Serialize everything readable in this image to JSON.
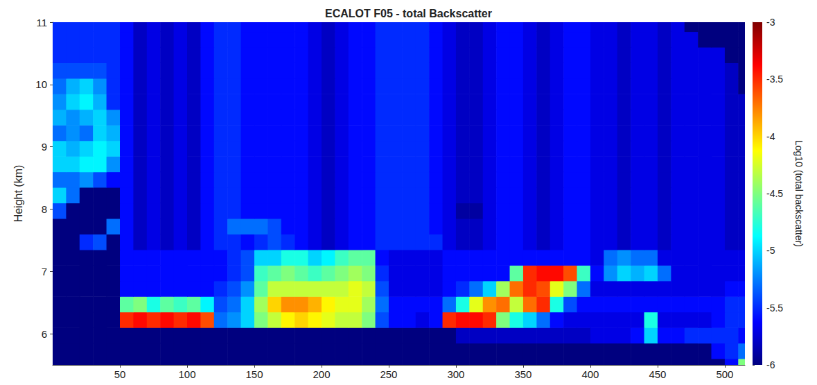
{
  "chart_data": {
    "type": "heatmap",
    "title": "ECALOT F05 - total Backscatter",
    "y_label": "Height (km)",
    "xlim": [
      0,
      515
    ],
    "xticks": [
      50,
      100,
      150,
      200,
      250,
      300,
      350,
      400,
      450,
      500
    ],
    "ylim": [
      5.5,
      11
    ],
    "yticks": [
      6,
      7,
      8,
      9,
      10,
      11
    ],
    "colorbar": {
      "label": "Log10 (total backscatter)",
      "range": [
        -6,
        -3
      ],
      "ticks": [
        -6,
        -5.5,
        -5,
        -4.5,
        -4,
        -3.5,
        -3
      ]
    },
    "x": [
      5,
      15,
      25,
      35,
      45,
      55,
      65,
      75,
      85,
      95,
      105,
      115,
      125,
      135,
      145,
      155,
      165,
      175,
      185,
      195,
      205,
      215,
      225,
      235,
      245,
      255,
      265,
      275,
      285,
      295,
      305,
      315,
      325,
      335,
      345,
      355,
      365,
      375,
      385,
      395,
      405,
      415,
      425,
      435,
      445,
      455,
      465,
      475,
      485,
      495,
      505,
      515
    ],
    "y": [
      5.475,
      5.725,
      5.975,
      6.225,
      6.475,
      6.725,
      6.975,
      7.225,
      7.475,
      7.725,
      7.975,
      8.225,
      8.475,
      8.725,
      8.975,
      9.225,
      9.475,
      9.725,
      9.975,
      10.225,
      10.475,
      10.725,
      10.975
    ],
    "values": [
      [
        -6,
        -6,
        -6,
        -6,
        -6,
        -6,
        -6,
        -6,
        -6,
        -6,
        -6,
        -6,
        -6,
        -6,
        -6,
        -6,
        -6,
        -6,
        -6,
        -6,
        -6,
        -6,
        -6,
        -6,
        -6,
        -6,
        -6,
        -6,
        -6,
        -6,
        -6,
        -6,
        -6,
        -6,
        -6,
        -6,
        -6,
        -6,
        -6,
        -6,
        -6,
        -6,
        -6,
        -6,
        -6,
        -6,
        -6,
        -6,
        -6,
        -6,
        -5.6,
        -4.5
      ],
      [
        -6,
        -6,
        -6,
        -6,
        -6,
        -6,
        -6,
        -6,
        -6,
        -6,
        -6,
        -6,
        -6,
        -6,
        -6,
        -6,
        -6,
        -6,
        -6,
        -6,
        -6,
        -6,
        -6,
        -6,
        -6,
        -6,
        -6,
        -6,
        -6,
        -6,
        -6,
        -6,
        -6,
        -6,
        -6,
        -6,
        -6,
        -6,
        -6,
        -6,
        -6,
        -6,
        -6,
        -6,
        -6,
        -6,
        -6,
        -6,
        -6,
        -5.6,
        -5.5,
        -5.3
      ],
      [
        -6,
        -6,
        -6,
        -6,
        -6,
        -6,
        -6,
        -6,
        -6,
        -6,
        -6,
        -6,
        -6,
        -6,
        -6,
        -6,
        -6,
        -6,
        -6,
        -6,
        -6,
        -6,
        -6,
        -6,
        -6,
        -6,
        -6,
        -6,
        -6,
        -6,
        -5.8,
        -5.8,
        -5.8,
        -5.8,
        -5.8,
        -5.8,
        -5.8,
        -5.8,
        -5.8,
        -5.8,
        -5.7,
        -5.7,
        -5.7,
        -5.6,
        -5.0,
        -5.6,
        -5.6,
        -5.5,
        -5.5,
        -5.5,
        -5.5,
        -5.6
      ],
      [
        -6,
        -6,
        -6,
        -6,
        -6,
        -3.5,
        -3.4,
        -3.5,
        -3.4,
        -3.5,
        -3.4,
        -3.6,
        -5.3,
        -5.2,
        -5.0,
        -4.5,
        -4.3,
        -4.1,
        -4.0,
        -4.1,
        -4.2,
        -4.3,
        -4.3,
        -4.5,
        -5.4,
        -5.6,
        -5.6,
        -5.7,
        -5.6,
        -3.5,
        -3.4,
        -3.4,
        -3.5,
        -4.5,
        -4.8,
        -5.0,
        -5.3,
        -5.6,
        -5.7,
        -5.7,
        -5.7,
        -5.7,
        -5.7,
        -5.7,
        -4.8,
        -5.7,
        -5.7,
        -5.7,
        -5.7,
        -5.6,
        -5.5,
        -5.5
      ],
      [
        -6,
        -6,
        -6,
        -6,
        -6,
        -4.6,
        -4.5,
        -4.8,
        -4.6,
        -4.7,
        -4.6,
        -4.9,
        -5.4,
        -5.3,
        -5.0,
        -4.4,
        -4.0,
        -3.8,
        -3.8,
        -3.9,
        -4.1,
        -4.2,
        -4.2,
        -4.4,
        -5.3,
        -5.6,
        -5.6,
        -5.6,
        -5.6,
        -5.3,
        -4.8,
        -4.2,
        -3.8,
        -3.7,
        -4.3,
        -3.7,
        -3.5,
        -4.8,
        -5.4,
        -5.6,
        -5.6,
        -5.6,
        -5.6,
        -5.6,
        -5.6,
        -5.6,
        -5.6,
        -5.6,
        -5.6,
        -5.6,
        -5.5,
        -5.5
      ],
      [
        -6,
        -6,
        -6,
        -6,
        -6,
        -5.6,
        -5.6,
        -5.6,
        -5.6,
        -5.6,
        -5.6,
        -5.6,
        -5.5,
        -5.4,
        -5.2,
        -4.6,
        -4.3,
        -4.3,
        -4.3,
        -4.3,
        -4.3,
        -4.3,
        -4.2,
        -4.3,
        -5.4,
        -5.7,
        -5.7,
        -5.7,
        -5.7,
        -5.6,
        -5.5,
        -5.3,
        -5.0,
        -4.4,
        -3.7,
        -3.5,
        -3.6,
        -4.2,
        -4.5,
        -5.3,
        -5.7,
        -5.7,
        -5.7,
        -5.7,
        -5.7,
        -5.7,
        -5.7,
        -5.7,
        -5.7,
        -5.7,
        -5.6,
        -5.6
      ],
      [
        -6,
        -6,
        -6,
        -6,
        -6,
        -5.6,
        -5.6,
        -5.6,
        -5.6,
        -5.6,
        -5.6,
        -5.6,
        -5.6,
        -5.5,
        -5.4,
        -4.7,
        -4.6,
        -4.5,
        -4.6,
        -4.7,
        -4.6,
        -4.5,
        -4.4,
        -4.5,
        -5.5,
        -5.7,
        -5.7,
        -5.7,
        -5.7,
        -5.6,
        -5.6,
        -5.6,
        -5.6,
        -5.6,
        -4.6,
        -3.5,
        -3.4,
        -3.4,
        -3.6,
        -4.7,
        -5.6,
        -5.2,
        -5.0,
        -5.1,
        -5.0,
        -5.3,
        -5.7,
        -5.7,
        -5.7,
        -5.7,
        -5.7,
        -5.7
      ],
      [
        -6,
        -6,
        -6,
        -6,
        -6,
        -5.6,
        -5.6,
        -5.6,
        -5.6,
        -5.6,
        -5.6,
        -5.6,
        -5.6,
        -5.5,
        -5.4,
        -5.0,
        -5.0,
        -4.8,
        -4.8,
        -5.0,
        -4.9,
        -4.7,
        -4.6,
        -4.6,
        -5.6,
        -5.7,
        -5.7,
        -5.7,
        -5.7,
        -5.6,
        -5.6,
        -5.6,
        -5.6,
        -5.6,
        -5.6,
        -5.6,
        -5.6,
        -5.6,
        -5.6,
        -5.6,
        -5.7,
        -5.3,
        -5.2,
        -5.3,
        -5.3,
        -5.7,
        -5.7,
        -5.7,
        -5.7,
        -5.7,
        -5.7,
        -5.7
      ],
      [
        -6,
        -6,
        -5.5,
        -5.4,
        -6,
        -5.6,
        -5.8,
        -5.7,
        -5.8,
        -5.7,
        -5.8,
        -5.6,
        -5.5,
        -5.5,
        -5.6,
        -5.5,
        -5.4,
        -5.5,
        -5.6,
        -5.7,
        -5.8,
        -5.7,
        -5.6,
        -5.6,
        -5.5,
        -5.5,
        -5.5,
        -5.5,
        -5.5,
        -5.7,
        -5.8,
        -5.8,
        -5.7,
        -5.6,
        -5.6,
        -5.7,
        -5.8,
        -5.7,
        -5.6,
        -5.6,
        -5.7,
        -5.7,
        -5.8,
        -5.7,
        -5.7,
        -5.8,
        -5.7,
        -5.7,
        -5.7,
        -5.7,
        -5.8,
        -5.8
      ],
      [
        -6,
        -6,
        -6,
        -6,
        -5.3,
        -5.6,
        -5.8,
        -5.7,
        -5.8,
        -5.7,
        -5.8,
        -5.6,
        -5.5,
        -5.3,
        -5.3,
        -5.3,
        -5.4,
        -5.6,
        -5.6,
        -5.7,
        -5.8,
        -5.7,
        -5.6,
        -5.6,
        -5.5,
        -5.5,
        -5.5,
        -5.5,
        -5.6,
        -5.7,
        -5.8,
        -5.8,
        -5.7,
        -5.6,
        -5.6,
        -5.7,
        -5.8,
        -5.7,
        -5.6,
        -5.6,
        -5.7,
        -5.7,
        -5.8,
        -5.7,
        -5.7,
        -5.8,
        -5.7,
        -5.7,
        -5.7,
        -5.7,
        -5.8,
        -5.8
      ],
      [
        -5.4,
        -6,
        -6,
        -6,
        -6,
        -5.6,
        -5.8,
        -5.7,
        -5.8,
        -5.7,
        -5.8,
        -5.6,
        -5.5,
        -5.5,
        -5.6,
        -5.6,
        -5.6,
        -5.6,
        -5.6,
        -5.7,
        -5.8,
        -5.7,
        -5.6,
        -5.6,
        -5.5,
        -5.5,
        -5.5,
        -5.5,
        -5.6,
        -5.7,
        -5.9,
        -5.9,
        -5.7,
        -5.6,
        -5.6,
        -5.7,
        -5.8,
        -5.7,
        -5.6,
        -5.6,
        -5.7,
        -5.7,
        -5.8,
        -5.7,
        -5.7,
        -5.8,
        -5.7,
        -5.7,
        -5.7,
        -5.7,
        -5.8,
        -5.8
      ],
      [
        -5.0,
        -5.3,
        -6,
        -6,
        -6,
        -5.6,
        -5.8,
        -5.7,
        -5.8,
        -5.7,
        -5.8,
        -5.6,
        -5.5,
        -5.5,
        -5.6,
        -5.6,
        -5.6,
        -5.6,
        -5.6,
        -5.7,
        -5.8,
        -5.7,
        -5.6,
        -5.6,
        -5.5,
        -5.5,
        -5.5,
        -5.5,
        -5.6,
        -5.7,
        -5.8,
        -5.8,
        -5.7,
        -5.6,
        -5.6,
        -5.7,
        -5.8,
        -5.7,
        -5.6,
        -5.6,
        -5.7,
        -5.7,
        -5.8,
        -5.7,
        -5.7,
        -5.8,
        -5.7,
        -5.7,
        -5.7,
        -5.7,
        -5.8,
        -5.8
      ],
      [
        -5.3,
        -5.3,
        -5.2,
        -5.4,
        -5.6,
        -5.6,
        -5.8,
        -5.7,
        -5.8,
        -5.7,
        -5.8,
        -5.6,
        -5.5,
        -5.5,
        -5.6,
        -5.6,
        -5.6,
        -5.6,
        -5.6,
        -5.7,
        -5.8,
        -5.7,
        -5.6,
        -5.6,
        -5.5,
        -5.5,
        -5.5,
        -5.5,
        -5.6,
        -5.7,
        -5.8,
        -5.8,
        -5.7,
        -5.6,
        -5.6,
        -5.7,
        -5.8,
        -5.7,
        -5.6,
        -5.6,
        -5.7,
        -5.7,
        -5.8,
        -5.7,
        -5.7,
        -5.8,
        -5.7,
        -5.7,
        -5.7,
        -5.7,
        -5.8,
        -5.8
      ],
      [
        -5.0,
        -5.0,
        -4.9,
        -4.9,
        -5.2,
        -5.6,
        -5.8,
        -5.7,
        -5.8,
        -5.7,
        -5.8,
        -5.6,
        -5.5,
        -5.5,
        -5.6,
        -5.6,
        -5.6,
        -5.6,
        -5.6,
        -5.7,
        -5.8,
        -5.7,
        -5.6,
        -5.6,
        -5.5,
        -5.5,
        -5.5,
        -5.5,
        -5.6,
        -5.7,
        -5.8,
        -5.8,
        -5.7,
        -5.6,
        -5.6,
        -5.7,
        -5.8,
        -5.7,
        -5.6,
        -5.6,
        -5.7,
        -5.7,
        -5.8,
        -5.7,
        -5.7,
        -5.8,
        -5.7,
        -5.7,
        -5.7,
        -5.7,
        -5.8,
        -5.8
      ],
      [
        -5.0,
        -5.1,
        -5.0,
        -4.9,
        -5.0,
        -5.6,
        -5.8,
        -5.7,
        -5.8,
        -5.7,
        -5.8,
        -5.6,
        -5.5,
        -5.5,
        -5.6,
        -5.6,
        -5.6,
        -5.6,
        -5.6,
        -5.7,
        -5.8,
        -5.7,
        -5.6,
        -5.6,
        -5.5,
        -5.5,
        -5.5,
        -5.5,
        -5.6,
        -5.7,
        -5.8,
        -5.8,
        -5.7,
        -5.6,
        -5.6,
        -5.7,
        -5.8,
        -5.7,
        -5.6,
        -5.6,
        -5.7,
        -5.7,
        -5.8,
        -5.7,
        -5.7,
        -5.8,
        -5.7,
        -5.7,
        -5.7,
        -5.7,
        -5.8,
        -5.8
      ],
      [
        -5.3,
        -5.2,
        -5.3,
        -5.0,
        -5.1,
        -5.6,
        -5.8,
        -5.7,
        -5.8,
        -5.7,
        -5.8,
        -5.6,
        -5.5,
        -5.5,
        -5.6,
        -5.6,
        -5.6,
        -5.6,
        -5.6,
        -5.7,
        -5.8,
        -5.7,
        -5.6,
        -5.6,
        -5.5,
        -5.5,
        -5.5,
        -5.5,
        -5.6,
        -5.7,
        -5.8,
        -5.8,
        -5.7,
        -5.6,
        -5.6,
        -5.7,
        -5.8,
        -5.7,
        -5.6,
        -5.6,
        -5.7,
        -5.7,
        -5.8,
        -5.7,
        -5.7,
        -5.8,
        -5.7,
        -5.7,
        -5.7,
        -5.7,
        -5.8,
        -5.8
      ],
      [
        -5.1,
        -5.2,
        -5.1,
        -5.0,
        -5.2,
        -5.6,
        -5.8,
        -5.7,
        -5.8,
        -5.7,
        -5.8,
        -5.6,
        -5.5,
        -5.5,
        -5.6,
        -5.6,
        -5.6,
        -5.6,
        -5.6,
        -5.7,
        -5.8,
        -5.7,
        -5.6,
        -5.6,
        -5.5,
        -5.5,
        -5.5,
        -5.5,
        -5.6,
        -5.7,
        -5.8,
        -5.8,
        -5.7,
        -5.6,
        -5.6,
        -5.7,
        -5.8,
        -5.7,
        -5.6,
        -5.6,
        -5.7,
        -5.7,
        -5.8,
        -5.7,
        -5.7,
        -5.8,
        -5.7,
        -5.7,
        -5.7,
        -5.7,
        -5.8,
        -5.8
      ],
      [
        -5.2,
        -5.0,
        -4.9,
        -5.1,
        -5.5,
        -5.6,
        -5.8,
        -5.7,
        -5.8,
        -5.7,
        -5.8,
        -5.6,
        -5.5,
        -5.5,
        -5.6,
        -5.6,
        -5.6,
        -5.6,
        -5.6,
        -5.7,
        -5.8,
        -5.7,
        -5.6,
        -5.6,
        -5.5,
        -5.5,
        -5.5,
        -5.5,
        -5.6,
        -5.7,
        -5.8,
        -5.8,
        -5.7,
        -5.6,
        -5.6,
        -5.7,
        -5.8,
        -5.7,
        -5.6,
        -5.6,
        -5.7,
        -5.7,
        -5.8,
        -5.7,
        -5.7,
        -5.8,
        -5.7,
        -5.7,
        -5.7,
        -5.7,
        -5.8,
        -5.8
      ],
      [
        -5.3,
        -5.1,
        -5.0,
        -5.2,
        -5.5,
        -5.6,
        -5.8,
        -5.7,
        -5.8,
        -5.7,
        -5.8,
        -5.6,
        -5.5,
        -5.5,
        -5.6,
        -5.6,
        -5.6,
        -5.6,
        -5.6,
        -5.7,
        -5.8,
        -5.7,
        -5.6,
        -5.6,
        -5.5,
        -5.5,
        -5.5,
        -5.5,
        -5.6,
        -5.7,
        -5.8,
        -5.8,
        -5.7,
        -5.6,
        -5.6,
        -5.7,
        -5.8,
        -5.7,
        -5.6,
        -5.6,
        -5.7,
        -5.7,
        -5.8,
        -5.7,
        -5.7,
        -5.8,
        -5.7,
        -5.7,
        -5.7,
        -5.7,
        -5.8,
        -6
      ],
      [
        -5.4,
        -5.4,
        -5.4,
        -5.4,
        -5.5,
        -5.6,
        -5.8,
        -5.7,
        -5.8,
        -5.7,
        -5.8,
        -5.6,
        -5.5,
        -5.5,
        -5.6,
        -5.6,
        -5.6,
        -5.6,
        -5.6,
        -5.7,
        -5.8,
        -5.7,
        -5.6,
        -5.6,
        -5.5,
        -5.5,
        -5.5,
        -5.5,
        -5.6,
        -5.7,
        -5.8,
        -5.8,
        -5.7,
        -5.6,
        -5.6,
        -5.7,
        -5.8,
        -5.7,
        -5.6,
        -5.6,
        -5.7,
        -5.7,
        -5.8,
        -5.7,
        -5.7,
        -5.8,
        -5.7,
        -5.7,
        -5.7,
        -5.7,
        -5.8,
        -6
      ],
      [
        -5.5,
        -5.5,
        -5.5,
        -5.5,
        -5.5,
        -5.6,
        -5.8,
        -5.7,
        -5.8,
        -5.7,
        -5.8,
        -5.6,
        -5.5,
        -5.5,
        -5.6,
        -5.6,
        -5.6,
        -5.6,
        -5.6,
        -5.7,
        -5.8,
        -5.7,
        -5.6,
        -5.6,
        -5.5,
        -5.5,
        -5.5,
        -5.5,
        -5.6,
        -5.7,
        -5.8,
        -5.8,
        -5.7,
        -5.6,
        -5.6,
        -5.7,
        -5.8,
        -5.7,
        -5.6,
        -5.6,
        -5.7,
        -5.7,
        -5.8,
        -5.7,
        -5.7,
        -5.8,
        -5.7,
        -5.7,
        -5.7,
        -5.7,
        -6,
        -6
      ],
      [
        -5.5,
        -5.5,
        -5.5,
        -5.5,
        -5.5,
        -5.6,
        -5.8,
        -5.7,
        -5.8,
        -5.7,
        -5.8,
        -5.6,
        -5.5,
        -5.5,
        -5.6,
        -5.6,
        -5.6,
        -5.6,
        -5.6,
        -5.7,
        -5.8,
        -5.7,
        -5.6,
        -5.6,
        -5.5,
        -5.5,
        -5.5,
        -5.5,
        -5.6,
        -5.7,
        -5.8,
        -5.8,
        -5.7,
        -5.6,
        -5.6,
        -5.7,
        -5.8,
        -5.7,
        -5.6,
        -5.6,
        -5.7,
        -5.7,
        -5.8,
        -5.7,
        -5.7,
        -5.8,
        -5.7,
        -5.7,
        -6,
        -6,
        -6,
        -6
      ],
      [
        -5.5,
        -5.5,
        -5.5,
        -5.5,
        -5.5,
        -5.6,
        -5.8,
        -5.7,
        -5.8,
        -5.7,
        -5.8,
        -5.6,
        -5.5,
        -5.5,
        -5.6,
        -5.6,
        -5.6,
        -5.6,
        -5.6,
        -5.7,
        -5.8,
        -5.7,
        -5.6,
        -5.6,
        -5.5,
        -5.5,
        -5.5,
        -5.5,
        -5.6,
        -5.7,
        -5.8,
        -5.8,
        -5.7,
        -5.6,
        -5.6,
        -5.7,
        -5.8,
        -5.7,
        -5.6,
        -5.6,
        -5.7,
        -5.7,
        -5.8,
        -5.7,
        -5.7,
        -5.8,
        -5.7,
        -6,
        -6,
        -6,
        -6,
        -6
      ]
    ]
  }
}
